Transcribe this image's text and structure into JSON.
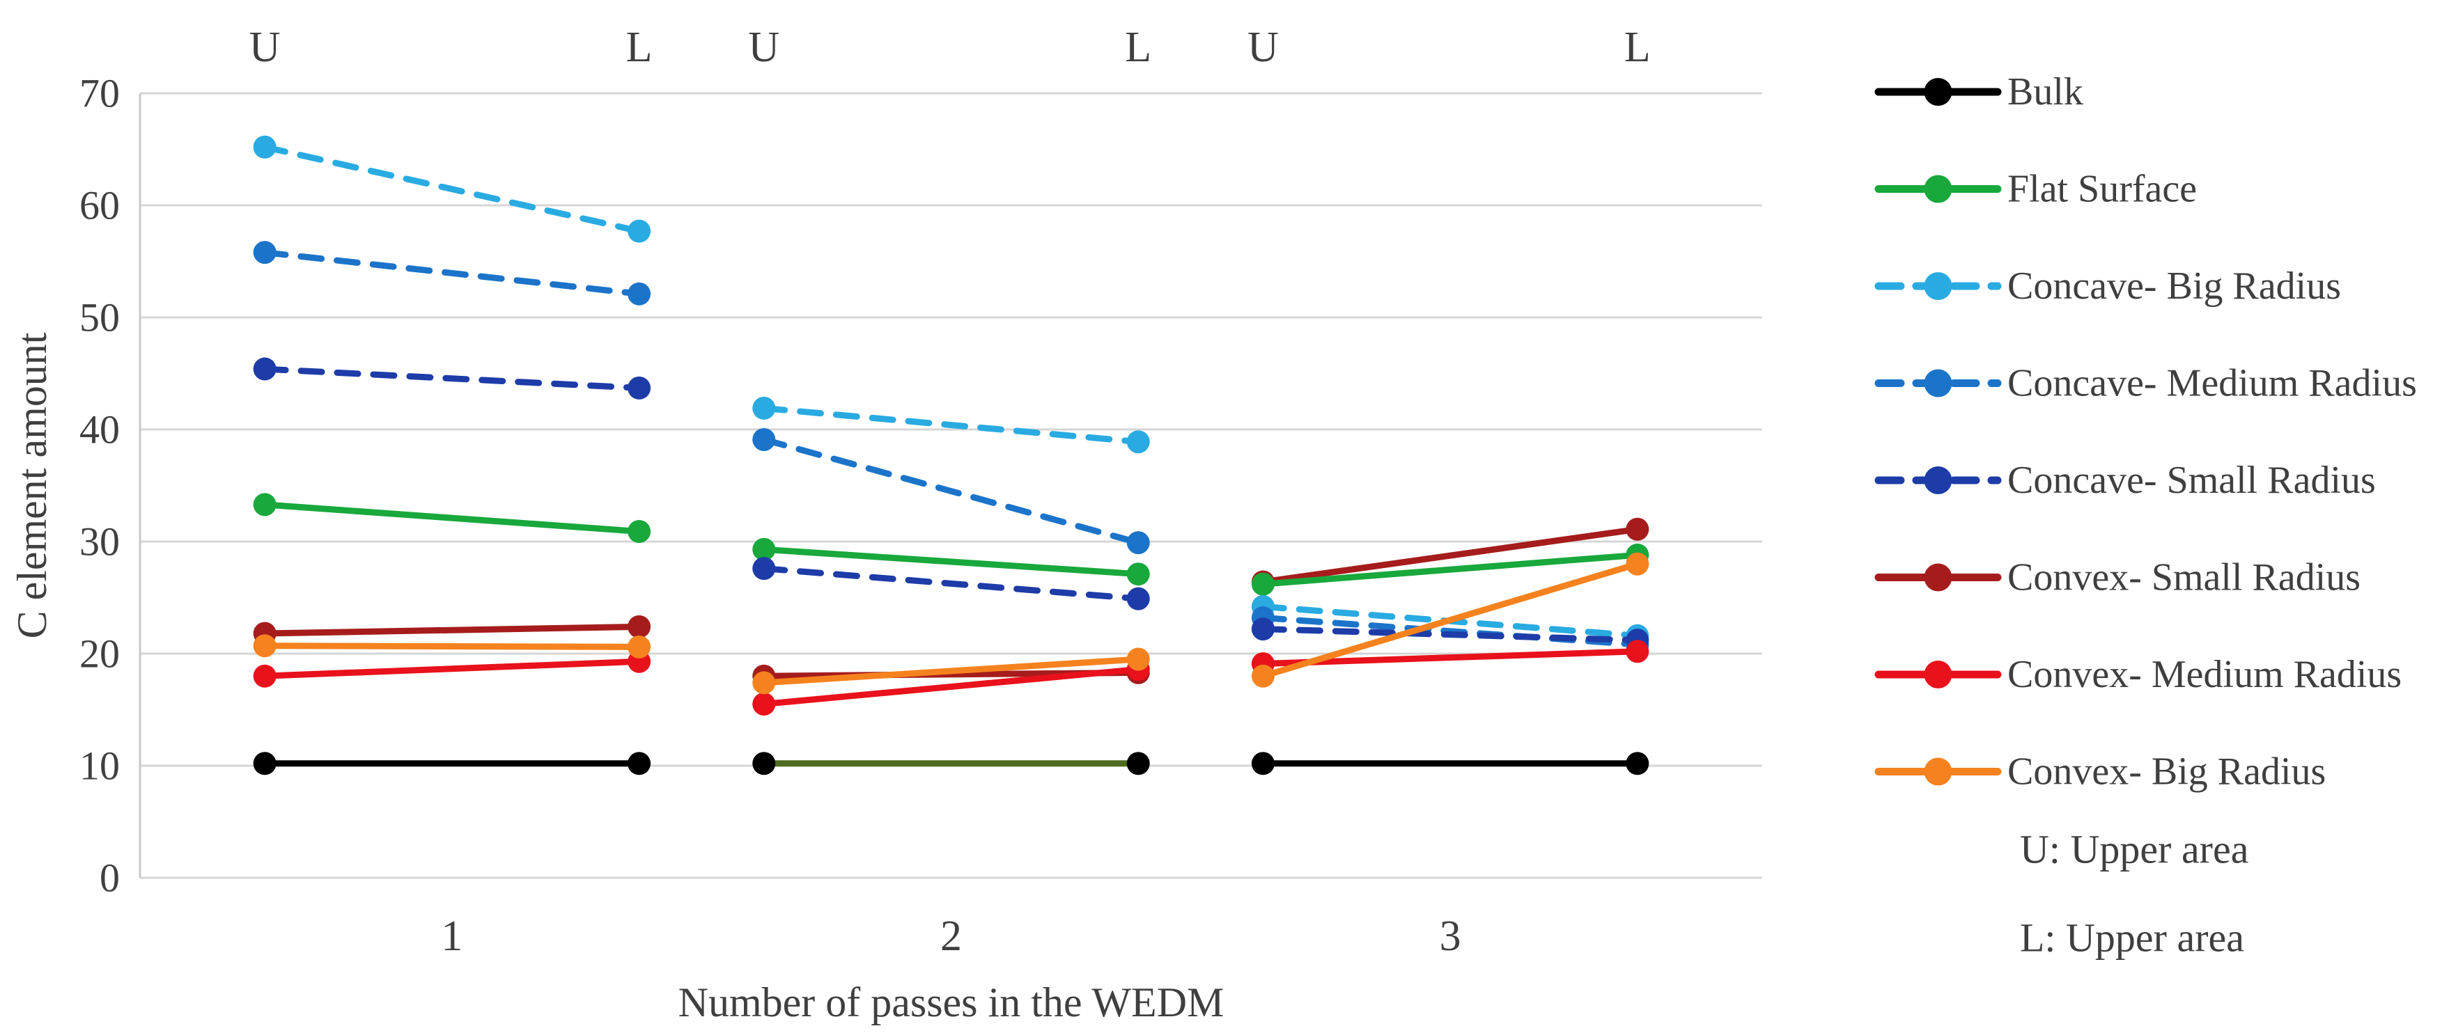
{
  "chart_data": {
    "type": "line",
    "title": "",
    "xlabel": "Number of passes in the WEDM",
    "ylabel": "C element amount",
    "ylim": [
      0,
      70
    ],
    "yticks": [
      0,
      10,
      20,
      30,
      40,
      50,
      60,
      70
    ],
    "grid": true,
    "legend_position": "right",
    "x_categories": [
      "1",
      "2",
      "3"
    ],
    "column_headers": [
      "U",
      "L",
      "U",
      "L",
      "U",
      "L"
    ],
    "columns": [
      "U1",
      "L1",
      "U2",
      "L2",
      "U3",
      "L3"
    ],
    "column_positions_13ths": [
      1,
      4,
      5,
      8,
      9,
      12
    ],
    "series": [
      {
        "name": "Bulk",
        "color": "#000000",
        "dashed": false,
        "values": [
          10.2,
          10.2,
          10.2,
          10.2,
          10.2,
          10.2
        ],
        "segment_colors": [
          "#000000",
          "#4E6B1F",
          "#000000"
        ]
      },
      {
        "name": "Convex- Small Radius",
        "color": "#A61C1C",
        "dashed": false,
        "values": [
          21.8,
          22.4,
          18.0,
          18.3,
          26.4,
          31.1
        ]
      },
      {
        "name": "Flat Surface",
        "color": "#18A83C",
        "dashed": false,
        "values": [
          33.3,
          30.9,
          29.3,
          27.1,
          26.2,
          28.8
        ]
      },
      {
        "name": "Concave- Big Radius",
        "color": "#29ABE2",
        "dashed": true,
        "values": [
          65.2,
          57.7,
          41.9,
          38.9,
          24.2,
          21.6
        ]
      },
      {
        "name": "Concave- Medium Radius",
        "color": "#1B74C9",
        "dashed": true,
        "values": [
          55.8,
          52.1,
          39.1,
          29.9,
          23.2,
          20.8
        ]
      },
      {
        "name": "Concave- Small Radius",
        "color": "#1E3CA8",
        "dashed": true,
        "values": [
          45.4,
          43.7,
          27.6,
          24.9,
          22.2,
          21.2
        ]
      },
      {
        "name": "Convex- Medium Radius",
        "color": "#E8111C",
        "dashed": false,
        "values": [
          18.0,
          19.3,
          15.5,
          18.6,
          19.1,
          20.2
        ]
      },
      {
        "name": "Convex- Big Radius",
        "color": "#F5821E",
        "dashed": false,
        "values": [
          20.7,
          20.6,
          17.4,
          19.5,
          18.0,
          28.0
        ]
      }
    ],
    "legend": [
      {
        "label": "Bulk",
        "color": "#000000",
        "dashed": false
      },
      {
        "label": "Flat Surface",
        "color": "#18A83C",
        "dashed": false
      },
      {
        "label": "Concave- Big Radius",
        "color": "#29ABE2",
        "dashed": true
      },
      {
        "label": "Concave- Medium Radius",
        "color": "#1B74C9",
        "dashed": true
      },
      {
        "label": "Concave- Small Radius",
        "color": "#1E3CA8",
        "dashed": true
      },
      {
        "label": "Convex- Small Radius",
        "color": "#A61C1C",
        "dashed": false
      },
      {
        "label": "Convex- Medium Radius",
        "color": "#E8111C",
        "dashed": false
      },
      {
        "label": "Convex- Big Radius",
        "color": "#F5821E",
        "dashed": false
      }
    ],
    "notes": [
      "U: Upper area",
      "L: Upper area"
    ],
    "colors": {
      "gridline": "#D6D6D6",
      "axis_line": "#C8C8C8",
      "text": "#3F3F3F"
    }
  }
}
